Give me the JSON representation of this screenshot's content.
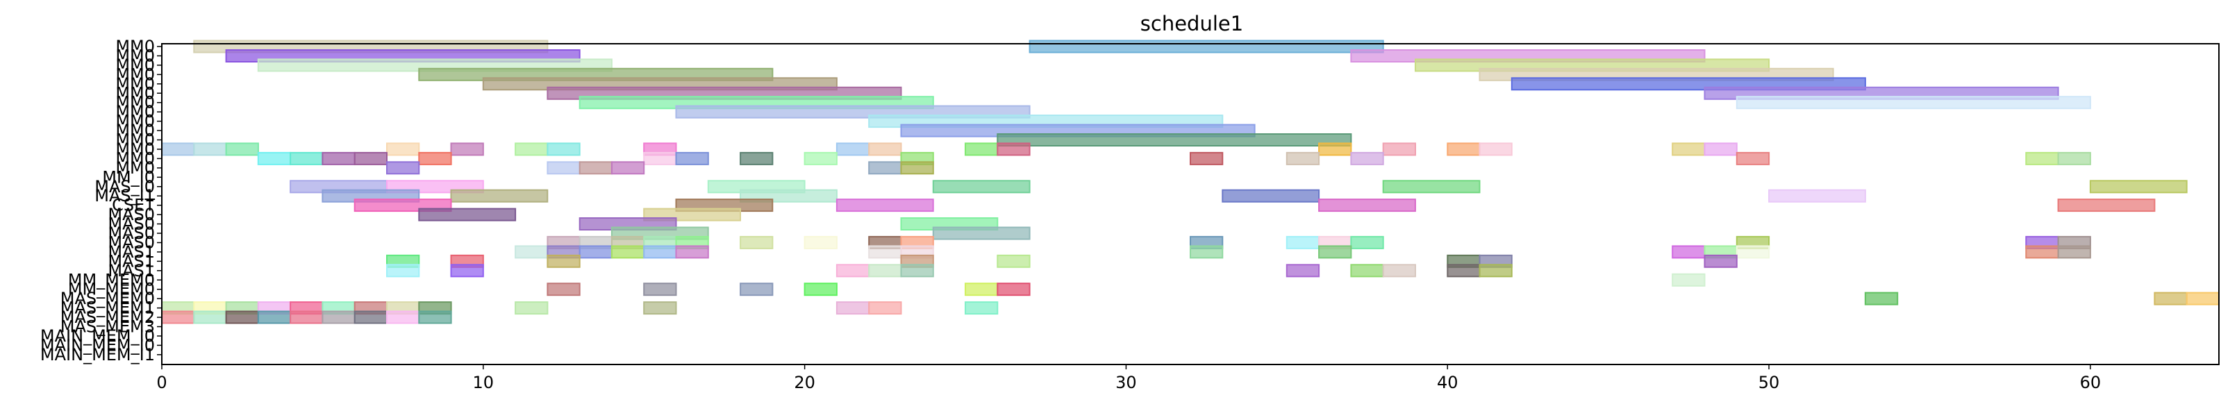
{
  "chart_data": {
    "type": "gantt",
    "title": "schedule1",
    "xlabel": "",
    "ylabel": "",
    "xlim": [
      0,
      64
    ],
    "x_ticks": [
      0,
      10,
      20,
      30,
      40,
      50,
      60
    ],
    "grid": false,
    "rows": [
      "MM0",
      "MM0",
      "MM0",
      "MM0",
      "MM0",
      "MM0",
      "MM0",
      "MM0",
      "MM0",
      "MM0",
      "MM0",
      "MM0",
      "MM0",
      "MM0",
      "MM_I0",
      "MAS_I0",
      "MAS_I1",
      "CSET",
      "MAS0",
      "MAS0",
      "MAS0",
      "MAS0",
      "MAS1",
      "MAS1",
      "MAS1",
      "MM_MEM0",
      "MM_MEM0",
      "MAS_MEM0",
      "MAS_MEM1",
      "MAS_MEM2",
      "MAS_MEM3",
      "MAIN_MEM_I0",
      "MAIN_MEM_I0",
      "MAIN_MEM_I1"
    ],
    "intervals": [
      {
        "row": 0,
        "start": 1,
        "end": 12,
        "color": "#d4d0b0"
      },
      {
        "row": 0,
        "start": 27,
        "end": 38,
        "color": "#6aaed6"
      },
      {
        "row": 1,
        "start": 2,
        "end": 13,
        "color": "#8a55e0"
      },
      {
        "row": 1,
        "start": 37,
        "end": 48,
        "color": "#d891e0"
      },
      {
        "row": 2,
        "start": 3,
        "end": 14,
        "color": "#c8ebc8"
      },
      {
        "row": 2,
        "start": 39,
        "end": 50,
        "color": "#c8dc84"
      },
      {
        "row": 3,
        "start": 8,
        "end": 19,
        "color": "#90b070"
      },
      {
        "row": 3,
        "start": 41,
        "end": 52,
        "color": "#d9cfb0"
      },
      {
        "row": 4,
        "start": 10,
        "end": 21,
        "color": "#ab9d7b"
      },
      {
        "row": 4,
        "start": 42,
        "end": 53,
        "color": "#5a6be0"
      },
      {
        "row": 5,
        "start": 12,
        "end": 23,
        "color": "#a86ba0"
      },
      {
        "row": 5,
        "start": 48,
        "end": 59,
        "color": "#9c7de0"
      },
      {
        "row": 6,
        "start": 13,
        "end": 24,
        "color": "#80f0a8"
      },
      {
        "row": 6,
        "start": 49,
        "end": 60,
        "color": "#cfe6f8"
      },
      {
        "row": 7,
        "start": 16,
        "end": 27,
        "color": "#a8b8e8"
      },
      {
        "row": 8,
        "start": 22,
        "end": 33,
        "color": "#a8e8f0"
      },
      {
        "row": 9,
        "start": 23,
        "end": 34,
        "color": "#8a9ee8"
      },
      {
        "row": 10,
        "start": 26,
        "end": 37,
        "color": "#5a9a78"
      },
      {
        "row": 11,
        "start": 0,
        "end": 1,
        "color": "#a8c8e8"
      },
      {
        "row": 11,
        "start": 1,
        "end": 2,
        "color": "#b0dce0"
      },
      {
        "row": 11,
        "start": 2,
        "end": 3,
        "color": "#7ae8a8"
      },
      {
        "row": 11,
        "start": 7,
        "end": 8,
        "color": "#f8d8b0"
      },
      {
        "row": 11,
        "start": 9,
        "end": 10,
        "color": "#c07ab8"
      },
      {
        "row": 11,
        "start": 11,
        "end": 12,
        "color": "#b0f0a0"
      },
      {
        "row": 11,
        "start": 12,
        "end": 13,
        "color": "#80e8e0"
      },
      {
        "row": 11,
        "start": 15,
        "end": 16,
        "color": "#f07ad0"
      },
      {
        "row": 11,
        "start": 21,
        "end": 22,
        "color": "#a0c8f0"
      },
      {
        "row": 11,
        "start": 22,
        "end": 23,
        "color": "#f0c8a8"
      },
      {
        "row": 11,
        "start": 25,
        "end": 26,
        "color": "#80e870"
      },
      {
        "row": 11,
        "start": 26,
        "end": 27,
        "color": "#d06080"
      },
      {
        "row": 11,
        "start": 36,
        "end": 37,
        "color": "#f0b840"
      },
      {
        "row": 11,
        "start": 38,
        "end": 39,
        "color": "#f0a0b0"
      },
      {
        "row": 11,
        "start": 40,
        "end": 41,
        "color": "#f8a870"
      },
      {
        "row": 11,
        "start": 41,
        "end": 42,
        "color": "#f8c8d8"
      },
      {
        "row": 11,
        "start": 47,
        "end": 48,
        "color": "#e0d080"
      },
      {
        "row": 11,
        "start": 48,
        "end": 49,
        "color": "#e8a8f0"
      },
      {
        "row": 12,
        "start": 3,
        "end": 4,
        "color": "#70f0f0"
      },
      {
        "row": 12,
        "start": 4,
        "end": 5,
        "color": "#60e8d0"
      },
      {
        "row": 12,
        "start": 5,
        "end": 6,
        "color": "#a060a8"
      },
      {
        "row": 12,
        "start": 6,
        "end": 7,
        "color": "#9a5a98"
      },
      {
        "row": 12,
        "start": 8,
        "end": 9,
        "color": "#f07060"
      },
      {
        "row": 12,
        "start": 15,
        "end": 16,
        "color": "#f8c8e8"
      },
      {
        "row": 12,
        "start": 16,
        "end": 17,
        "color": "#7a90d8"
      },
      {
        "row": 12,
        "start": 18,
        "end": 19,
        "color": "#5a8070"
      },
      {
        "row": 12,
        "start": 20,
        "end": 21,
        "color": "#a8f8b0"
      },
      {
        "row": 12,
        "start": 23,
        "end": 24,
        "color": "#90e070"
      },
      {
        "row": 12,
        "start": 32,
        "end": 33,
        "color": "#c05860"
      },
      {
        "row": 12,
        "start": 35,
        "end": 36,
        "color": "#d0c0b0"
      },
      {
        "row": 12,
        "start": 37,
        "end": 38,
        "color": "#d0a8e0"
      },
      {
        "row": 12,
        "start": 49,
        "end": 50,
        "color": "#e88080"
      },
      {
        "row": 12,
        "start": 58,
        "end": 59,
        "color": "#b8e880"
      },
      {
        "row": 12,
        "start": 59,
        "end": 60,
        "color": "#a8dca0"
      },
      {
        "row": 13,
        "start": 7,
        "end": 8,
        "color": "#9070d8"
      },
      {
        "row": 13,
        "start": 12,
        "end": 13,
        "color": "#b8c8f0"
      },
      {
        "row": 13,
        "start": 13,
        "end": 14,
        "color": "#c09898"
      },
      {
        "row": 13,
        "start": 14,
        "end": 15,
        "color": "#c078c0"
      },
      {
        "row": 13,
        "start": 22,
        "end": 23,
        "color": "#90a8c0"
      },
      {
        "row": 13,
        "start": 23,
        "end": 24,
        "color": "#a8b050"
      },
      {
        "row": 15,
        "start": 4,
        "end": 7,
        "color": "#a8a8e8"
      },
      {
        "row": 15,
        "start": 7,
        "end": 10,
        "color": "#f8a8f0"
      },
      {
        "row": 15,
        "start": 17,
        "end": 20,
        "color": "#a8f0c8"
      },
      {
        "row": 15,
        "start": 24,
        "end": 27,
        "color": "#70d098"
      },
      {
        "row": 15,
        "start": 38,
        "end": 41,
        "color": "#70d880"
      },
      {
        "row": 15,
        "start": 60,
        "end": 63,
        "color": "#b8c860"
      },
      {
        "row": 16,
        "start": 5,
        "end": 8,
        "color": "#8aa0d8"
      },
      {
        "row": 16,
        "start": 9,
        "end": 12,
        "color": "#b0b080"
      },
      {
        "row": 16,
        "start": 18,
        "end": 21,
        "color": "#b0e8d0"
      },
      {
        "row": 16,
        "start": 33,
        "end": 36,
        "color": "#6a78c8"
      },
      {
        "row": 16,
        "start": 50,
        "end": 53,
        "color": "#e8c8f8"
      },
      {
        "row": 17,
        "start": 6,
        "end": 9,
        "color": "#f060b8"
      },
      {
        "row": 17,
        "start": 16,
        "end": 19,
        "color": "#a07858"
      },
      {
        "row": 17,
        "start": 21,
        "end": 24,
        "color": "#d870d8"
      },
      {
        "row": 17,
        "start": 36,
        "end": 39,
        "color": "#d868c8"
      },
      {
        "row": 17,
        "start": 59,
        "end": 62,
        "color": "#e87878"
      },
      {
        "row": 18,
        "start": 8,
        "end": 11,
        "color": "#7a5890"
      },
      {
        "row": 18,
        "start": 15,
        "end": 18,
        "color": "#d8d090"
      },
      {
        "row": 19,
        "start": 13,
        "end": 16,
        "color": "#9868c0"
      },
      {
        "row": 19,
        "start": 23,
        "end": 26,
        "color": "#80f0a0"
      },
      {
        "row": 20,
        "start": 14,
        "end": 17,
        "color": "#90c8a0"
      },
      {
        "row": 20,
        "start": 24,
        "end": 27,
        "color": "#90b8b8"
      },
      {
        "row": 21,
        "start": 12,
        "end": 13,
        "color": "#c8a8b8"
      },
      {
        "row": 21,
        "start": 13,
        "end": 14,
        "color": "#c8c8c8"
      },
      {
        "row": 21,
        "start": 14,
        "end": 15,
        "color": "#c0c0a0"
      },
      {
        "row": 21,
        "start": 15,
        "end": 16,
        "color": "#a8e8b8"
      },
      {
        "row": 21,
        "start": 16,
        "end": 17,
        "color": "#90f090"
      },
      {
        "row": 21,
        "start": 18,
        "end": 19,
        "color": "#d0e0a0"
      },
      {
        "row": 21,
        "start": 20,
        "end": 21,
        "color": "#f8f8d8"
      },
      {
        "row": 21,
        "start": 22,
        "end": 23,
        "color": "#906858"
      },
      {
        "row": 21,
        "start": 23,
        "end": 24,
        "color": "#f8a080"
      },
      {
        "row": 21,
        "start": 32,
        "end": 33,
        "color": "#6a98b8"
      },
      {
        "row": 21,
        "start": 35,
        "end": 36,
        "color": "#a0f0f8"
      },
      {
        "row": 21,
        "start": 36,
        "end": 37,
        "color": "#f8d0e0"
      },
      {
        "row": 21,
        "start": 37,
        "end": 38,
        "color": "#70e8a8"
      },
      {
        "row": 21,
        "start": 49,
        "end": 50,
        "color": "#a8c858"
      },
      {
        "row": 21,
        "start": 58,
        "end": 59,
        "color": "#9860e0"
      },
      {
        "row": 21,
        "start": 59,
        "end": 60,
        "color": "#a09090"
      },
      {
        "row": 22,
        "start": 11,
        "end": 12,
        "color": "#c8e8e0"
      },
      {
        "row": 22,
        "start": 12,
        "end": 13,
        "color": "#9080c8"
      },
      {
        "row": 22,
        "start": 13,
        "end": 14,
        "color": "#8090e0"
      },
      {
        "row": 22,
        "start": 14,
        "end": 15,
        "color": "#a8e060"
      },
      {
        "row": 22,
        "start": 15,
        "end": 16,
        "color": "#90b8f0"
      },
      {
        "row": 22,
        "start": 16,
        "end": 17,
        "color": "#c878c8"
      },
      {
        "row": 22,
        "start": 22,
        "end": 23,
        "color": "#e8e0e0"
      },
      {
        "row": 22,
        "start": 23,
        "end": 24,
        "color": "#f0d8e0"
      },
      {
        "row": 22,
        "start": 32,
        "end": 33,
        "color": "#90d8a0"
      },
      {
        "row": 22,
        "start": 36,
        "end": 37,
        "color": "#78c878"
      },
      {
        "row": 22,
        "start": 47,
        "end": 48,
        "color": "#d068e0"
      },
      {
        "row": 22,
        "start": 48,
        "end": 49,
        "color": "#a0f0a0"
      },
      {
        "row": 22,
        "start": 49,
        "end": 50,
        "color": "#f0f8e0"
      },
      {
        "row": 22,
        "start": 58,
        "end": 59,
        "color": "#e08870"
      },
      {
        "row": 22,
        "start": 59,
        "end": 60,
        "color": "#a89890"
      },
      {
        "row": 23,
        "start": 7,
        "end": 8,
        "color": "#60e880"
      },
      {
        "row": 23,
        "start": 9,
        "end": 10,
        "color": "#e86070"
      },
      {
        "row": 23,
        "start": 12,
        "end": 13,
        "color": "#c0b060"
      },
      {
        "row": 23,
        "start": 23,
        "end": 24,
        "color": "#c89878"
      },
      {
        "row": 23,
        "start": 26,
        "end": 27,
        "color": "#b8e890"
      },
      {
        "row": 23,
        "start": 40,
        "end": 41,
        "color": "#607858"
      },
      {
        "row": 23,
        "start": 41,
        "end": 42,
        "color": "#8080a8"
      },
      {
        "row": 23,
        "start": 48,
        "end": 49,
        "color": "#a060c0"
      },
      {
        "row": 24,
        "start": 7,
        "end": 8,
        "color": "#a0f0f8"
      },
      {
        "row": 24,
        "start": 9,
        "end": 10,
        "color": "#9060f0"
      },
      {
        "row": 24,
        "start": 21,
        "end": 22,
        "color": "#f8b0d8"
      },
      {
        "row": 24,
        "start": 22,
        "end": 23,
        "color": "#c8e8c8"
      },
      {
        "row": 24,
        "start": 23,
        "end": 24,
        "color": "#98c8b0"
      },
      {
        "row": 24,
        "start": 35,
        "end": 36,
        "color": "#a868d0"
      },
      {
        "row": 24,
        "start": 37,
        "end": 38,
        "color": "#90d870"
      },
      {
        "row": 24,
        "start": 38,
        "end": 39,
        "color": "#d8c8c0"
      },
      {
        "row": 24,
        "start": 40,
        "end": 41,
        "color": "#706868"
      },
      {
        "row": 24,
        "start": 41,
        "end": 42,
        "color": "#a8b858"
      },
      {
        "row": 25,
        "start": 47,
        "end": 48,
        "color": "#d0f0d0"
      },
      {
        "row": 26,
        "start": 12,
        "end": 13,
        "color": "#c07878"
      },
      {
        "row": 26,
        "start": 15,
        "end": 16,
        "color": "#9090a0"
      },
      {
        "row": 26,
        "start": 18,
        "end": 19,
        "color": "#8898b8"
      },
      {
        "row": 26,
        "start": 20,
        "end": 21,
        "color": "#60f060"
      },
      {
        "row": 26,
        "start": 25,
        "end": 26,
        "color": "#d0f060"
      },
      {
        "row": 26,
        "start": 26,
        "end": 27,
        "color": "#e05070"
      },
      {
        "row": 27,
        "start": 53,
        "end": 54,
        "color": "#60c060"
      },
      {
        "row": 27,
        "start": 62,
        "end": 63,
        "color": "#d0b860"
      },
      {
        "row": 27,
        "start": 63,
        "end": 64,
        "color": "#f8c868"
      },
      {
        "row": 28,
        "start": 0,
        "end": 1,
        "color": "#c0e8a8"
      },
      {
        "row": 28,
        "start": 1,
        "end": 2,
        "color": "#f8f8b0"
      },
      {
        "row": 28,
        "start": 2,
        "end": 3,
        "color": "#a8e0a0"
      },
      {
        "row": 28,
        "start": 3,
        "end": 4,
        "color": "#f0b0f0"
      },
      {
        "row": 28,
        "start": 4,
        "end": 5,
        "color": "#f06090"
      },
      {
        "row": 28,
        "start": 5,
        "end": 6,
        "color": "#90f0c0"
      },
      {
        "row": 28,
        "start": 6,
        "end": 7,
        "color": "#c87878"
      },
      {
        "row": 28,
        "start": 7,
        "end": 8,
        "color": "#d8d8a8"
      },
      {
        "row": 28,
        "start": 8,
        "end": 9,
        "color": "#6a9860"
      },
      {
        "row": 28,
        "start": 11,
        "end": 12,
        "color": "#b8e8a8"
      },
      {
        "row": 28,
        "start": 15,
        "end": 16,
        "color": "#b0b888"
      },
      {
        "row": 28,
        "start": 21,
        "end": 22,
        "color": "#e8b0d8"
      },
      {
        "row": 28,
        "start": 22,
        "end": 23,
        "color": "#f8a8a8"
      },
      {
        "row": 28,
        "start": 25,
        "end": 26,
        "color": "#80f0c8"
      },
      {
        "row": 29,
        "start": 0,
        "end": 1,
        "color": "#f08890"
      },
      {
        "row": 29,
        "start": 1,
        "end": 2,
        "color": "#a8e8c8"
      },
      {
        "row": 29,
        "start": 2,
        "end": 3,
        "color": "#705858"
      },
      {
        "row": 29,
        "start": 3,
        "end": 4,
        "color": "#5898a8"
      },
      {
        "row": 29,
        "start": 4,
        "end": 5,
        "color": "#e8708a"
      },
      {
        "row": 29,
        "start": 5,
        "end": 6,
        "color": "#a8a0a8"
      },
      {
        "row": 29,
        "start": 6,
        "end": 7,
        "color": "#707080"
      },
      {
        "row": 29,
        "start": 7,
        "end": 8,
        "color": "#f8b8f0"
      },
      {
        "row": 29,
        "start": 8,
        "end": 9,
        "color": "#60a898"
      }
    ]
  }
}
